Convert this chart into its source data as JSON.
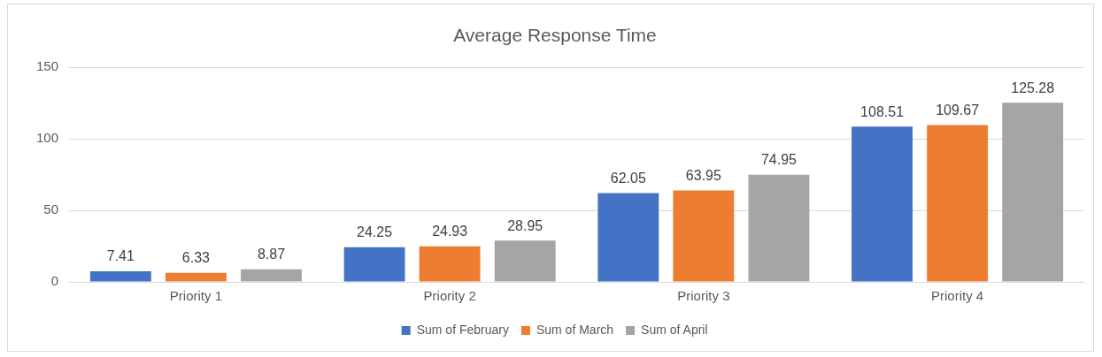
{
  "chart_data": {
    "type": "bar",
    "title": "Average Response Time",
    "categories": [
      "Priority 1",
      "Priority 2",
      "Priority 3",
      "Priority 4"
    ],
    "series": [
      {
        "name": "Sum of February",
        "color": "#4472c4",
        "values": [
          7.41,
          24.25,
          62.05,
          108.51
        ]
      },
      {
        "name": "Sum of March",
        "color": "#ed7d31",
        "values": [
          6.33,
          24.93,
          63.95,
          109.67
        ]
      },
      {
        "name": "Sum of April",
        "color": "#a5a5a5",
        "values": [
          8.87,
          28.95,
          74.95,
          125.28
        ]
      }
    ],
    "ylim": [
      0,
      150
    ],
    "yticks": [
      0,
      50,
      100,
      150
    ],
    "grid": "y",
    "legend": "bottom",
    "data_labels": true
  }
}
